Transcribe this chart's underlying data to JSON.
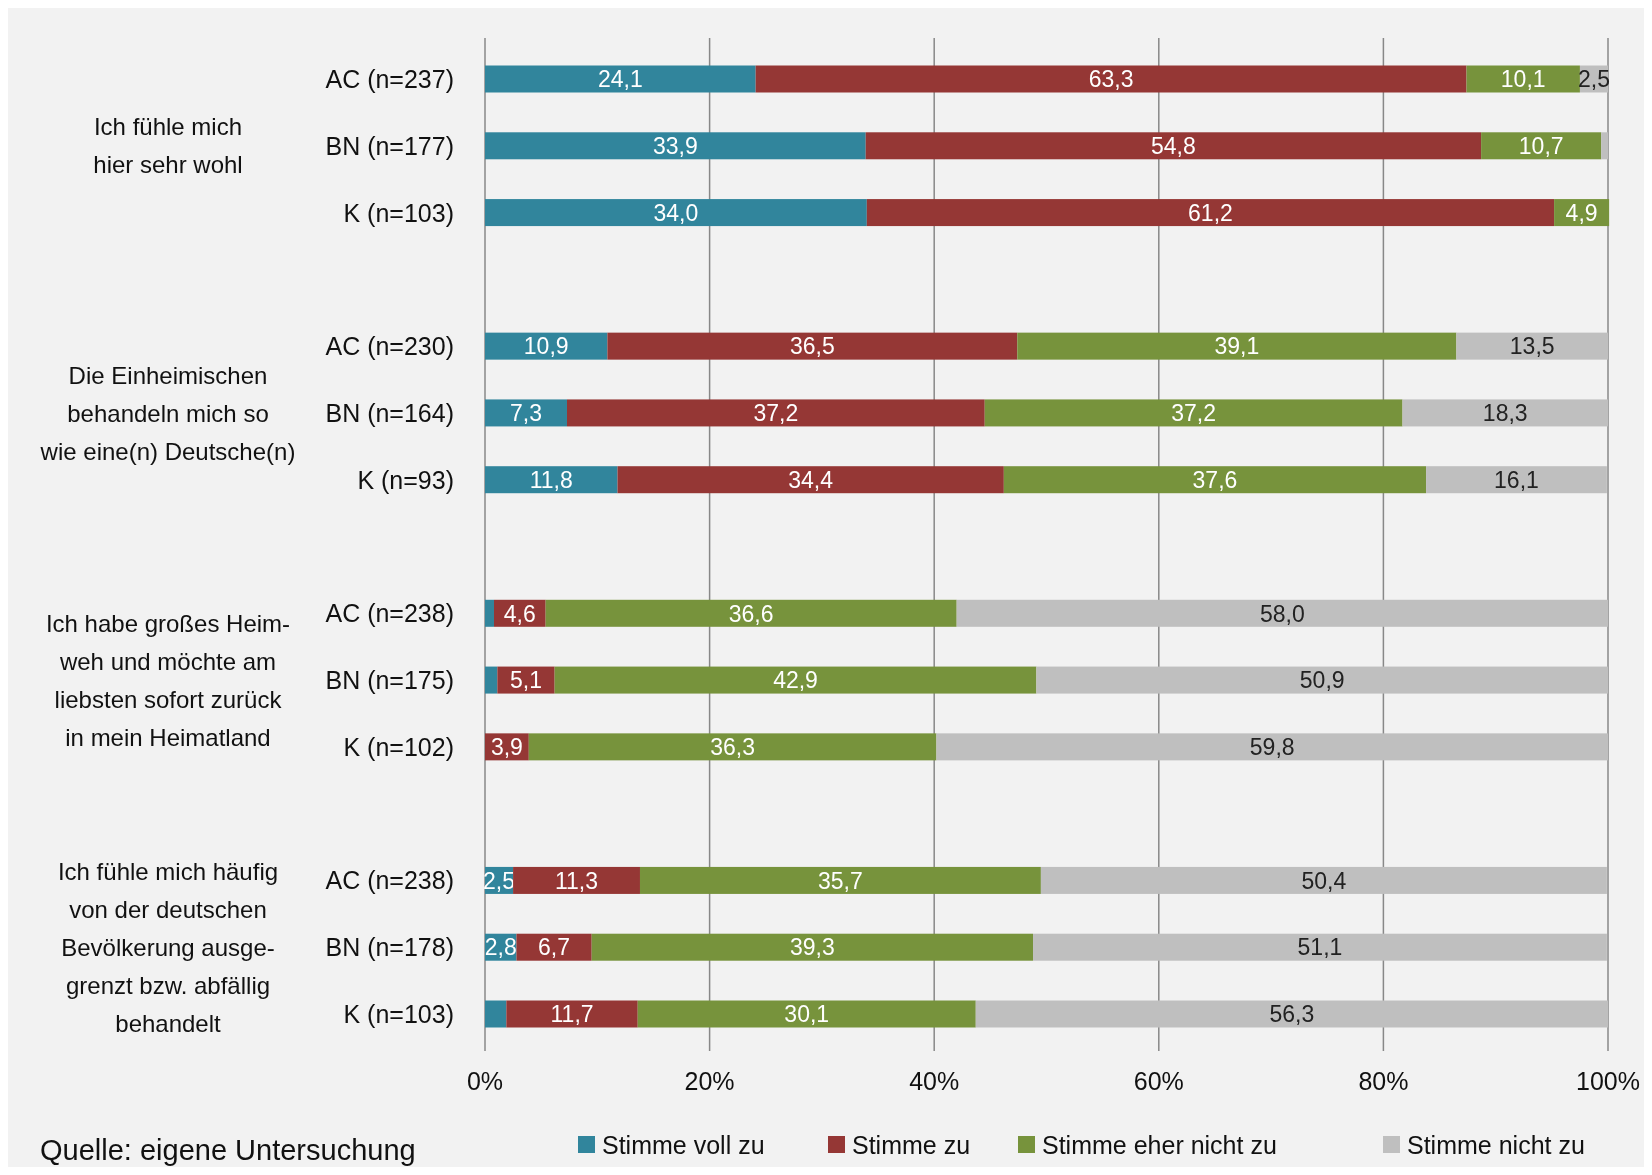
{
  "chart_data": {
    "type": "bar",
    "orientation": "horizontal",
    "stacked": true,
    "categories": [
      "AC (n=237)",
      "BN (n=177)",
      "K (n=103)",
      null,
      "AC (n=230)",
      "BN (n=164)",
      "K (n=93)",
      null,
      "AC (n=238)",
      "BN (n=175)",
      "K (n=102)",
      null,
      "AC (n=238)",
      "BN (n=178)",
      "K (n=103)"
    ],
    "series": [
      {
        "name": "Stimme voll zu",
        "color": "#31859c",
        "values": [
          24.1,
          33.9,
          34.0,
          null,
          10.9,
          7.3,
          11.8,
          null,
          0.8,
          1.1,
          0,
          null,
          2.5,
          2.8,
          1.9
        ],
        "value_labels": [
          "24,1",
          "33,9",
          "34,0",
          null,
          "10,9",
          "7,3",
          "11,8",
          null,
          null,
          null,
          null,
          null,
          "2,5",
          "2,8",
          null
        ]
      },
      {
        "name": "Stimme zu",
        "color": "#953735",
        "values": [
          63.3,
          54.8,
          61.2,
          null,
          36.5,
          37.2,
          34.4,
          null,
          4.6,
          5.1,
          3.9,
          null,
          11.3,
          6.7,
          11.7
        ],
        "value_labels": [
          "63,3",
          "54,8",
          "61,2",
          null,
          "36,5",
          "37,2",
          "34,4",
          null,
          "4,6",
          "5,1",
          "3,9",
          null,
          "11,3",
          "6,7",
          "11,7"
        ]
      },
      {
        "name": "Stimme eher nicht zu",
        "color": "#77933c",
        "values": [
          10.1,
          10.7,
          4.9,
          null,
          39.1,
          37.2,
          37.6,
          null,
          36.6,
          42.9,
          36.3,
          null,
          35.7,
          39.3,
          30.1
        ],
        "value_labels": [
          "10,1",
          "10,7",
          "4,9",
          null,
          "39,1",
          "37,2",
          "37,6",
          null,
          "36,6",
          "42,9",
          "36,3",
          null,
          "35,7",
          "39,3",
          "30,1"
        ]
      },
      {
        "name": "Stimme nicht zu",
        "color": "#bfbfbf",
        "values": [
          2.5,
          0.6,
          0,
          null,
          13.5,
          18.3,
          16.1,
          null,
          58.0,
          50.9,
          59.8,
          null,
          50.4,
          51.1,
          56.3
        ],
        "value_labels": [
          "2,5",
          null,
          null,
          null,
          "13,5",
          "18,3",
          "16,1",
          null,
          "58,0",
          "50,9",
          "59,8",
          null,
          "50,4",
          "51,1",
          "56,3"
        ]
      }
    ],
    "xlim": [
      0,
      100
    ],
    "xticks": [
      {
        "value": 0,
        "label": "0%"
      },
      {
        "value": 20,
        "label": "20%"
      },
      {
        "value": 40,
        "label": "40%"
      },
      {
        "value": 60,
        "label": "60%"
      },
      {
        "value": 80,
        "label": "80%"
      },
      {
        "value": 100,
        "label": "100%"
      }
    ],
    "grid": "x",
    "legend": "bottom",
    "annotations": [
      "Ich fühle mich\nhier sehr wohl",
      "Die Einheimischen\nbehandeln mich so\nwie eine(n) Deutsche(n)",
      "Ich habe großes Heim-\nweh und möchte am\nliebsten sofort zurück\nin mein Heimatland",
      "Ich fühle mich häufig\nvon der deutschen\nBevölkerung ausge-\ngrenzt bzw. abfällig\nbehandelt",
      "Quelle: eigene Untersuchung"
    ]
  }
}
